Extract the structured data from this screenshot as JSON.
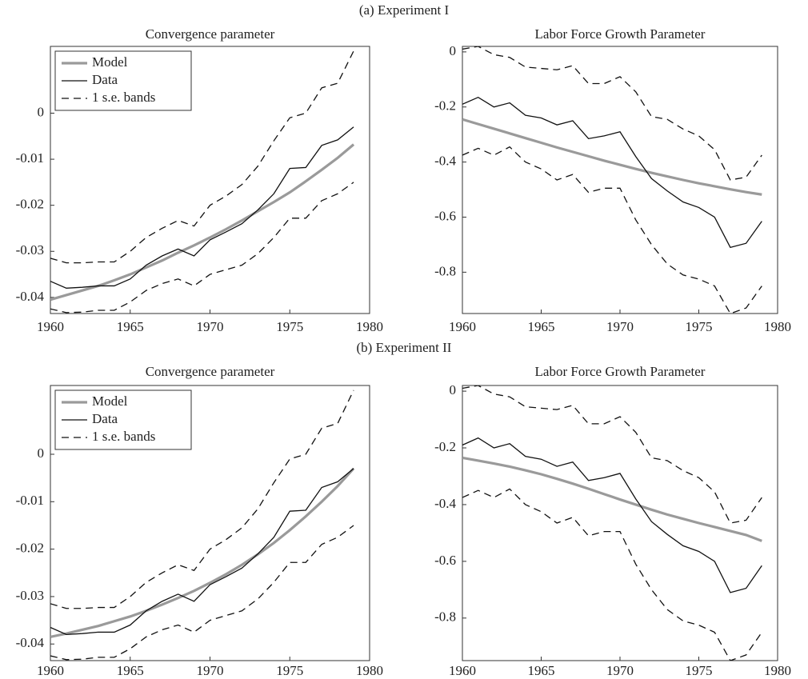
{
  "headings": [
    "(a) Experiment I",
    "(b) Experiment II"
  ],
  "chart_data": [
    {
      "type": "line",
      "title": "Convergence parameter",
      "legend": "upper left",
      "x": [
        1960,
        1961,
        1962,
        1963,
        1964,
        1965,
        1966,
        1967,
        1968,
        1969,
        1970,
        1971,
        1972,
        1973,
        1974,
        1975,
        1976,
        1977,
        1978,
        1979
      ],
      "xlim": [
        1960,
        1980
      ],
      "xticks": [
        1960,
        1965,
        1970,
        1975,
        1980
      ],
      "ylim": [
        -0.0435,
        0.0145
      ],
      "yticks": [
        -0.04,
        -0.03,
        -0.02,
        -0.01,
        0
      ],
      "series": [
        {
          "name": "Model",
          "color": "#9a9a9a",
          "linestyle": "solid",
          "values": [
            -0.0405,
            -0.0395,
            -0.0385,
            -0.0375,
            -0.0363,
            -0.035,
            -0.0335,
            -0.032,
            -0.0303,
            -0.0287,
            -0.027,
            -0.0252,
            -0.0233,
            -0.0213,
            -0.0193,
            -0.0172,
            -0.0148,
            -0.0123,
            -0.0097,
            -0.0068
          ]
        },
        {
          "name": "Data",
          "color": "#111111",
          "linestyle": "solid",
          "values": [
            -0.0365,
            -0.038,
            -0.0378,
            -0.0375,
            -0.0375,
            -0.036,
            -0.033,
            -0.031,
            -0.0295,
            -0.031,
            -0.0275,
            -0.0258,
            -0.024,
            -0.021,
            -0.0175,
            -0.012,
            -0.0118,
            -0.007,
            -0.0058,
            -0.003
          ]
        },
        {
          "name": "1 s.e. bands",
          "color": "#111111",
          "linestyle": "dashed",
          "upper": [
            -0.0315,
            -0.0325,
            -0.0325,
            -0.0323,
            -0.0323,
            -0.03,
            -0.027,
            -0.025,
            -0.0233,
            -0.0245,
            -0.02,
            -0.018,
            -0.0155,
            -0.0115,
            -0.006,
            -0.001,
            0.0,
            0.0055,
            0.0065,
            0.0135
          ],
          "lower": [
            -0.0425,
            -0.0433,
            -0.0432,
            -0.0428,
            -0.0428,
            -0.041,
            -0.0385,
            -0.037,
            -0.036,
            -0.0375,
            -0.035,
            -0.034,
            -0.033,
            -0.0305,
            -0.027,
            -0.0228,
            -0.0228,
            -0.019,
            -0.0175,
            -0.015
          ]
        }
      ]
    },
    {
      "type": "line",
      "title": "Labor Force Growth Parameter",
      "x": [
        1960,
        1961,
        1962,
        1963,
        1964,
        1965,
        1966,
        1967,
        1968,
        1969,
        1970,
        1971,
        1972,
        1973,
        1974,
        1975,
        1976,
        1977,
        1978,
        1979
      ],
      "xlim": [
        1960,
        1980
      ],
      "xticks": [
        1960,
        1965,
        1970,
        1975,
        1980
      ],
      "ylim": [
        -0.95,
        0.02
      ],
      "yticks": [
        -0.8,
        -0.6,
        -0.4,
        -0.2,
        0
      ],
      "series": [
        {
          "color": "#9a9a9a",
          "linestyle": "solid",
          "values": [
            -0.245,
            -0.262,
            -0.279,
            -0.296,
            -0.313,
            -0.33,
            -0.347,
            -0.363,
            -0.379,
            -0.395,
            -0.41,
            -0.425,
            -0.439,
            -0.452,
            -0.465,
            -0.477,
            -0.488,
            -0.499,
            -0.509,
            -0.518
          ]
        },
        {
          "color": "#111111",
          "linestyle": "solid",
          "values": [
            -0.19,
            -0.165,
            -0.2,
            -0.185,
            -0.23,
            -0.24,
            -0.265,
            -0.25,
            -0.315,
            -0.305,
            -0.29,
            -0.38,
            -0.46,
            -0.505,
            -0.545,
            -0.565,
            -0.6,
            -0.71,
            -0.695,
            -0.615
          ]
        },
        {
          "color": "#111111",
          "linestyle": "dashed",
          "upper": [
            0.01,
            0.02,
            -0.01,
            -0.02,
            -0.055,
            -0.06,
            -0.065,
            -0.05,
            -0.115,
            -0.115,
            -0.09,
            -0.145,
            -0.235,
            -0.245,
            -0.28,
            -0.305,
            -0.355,
            -0.465,
            -0.455,
            -0.375
          ],
          "lower": [
            -0.375,
            -0.35,
            -0.375,
            -0.345,
            -0.4,
            -0.425,
            -0.465,
            -0.445,
            -0.51,
            -0.495,
            -0.495,
            -0.61,
            -0.7,
            -0.77,
            -0.81,
            -0.825,
            -0.85,
            -0.95,
            -0.93,
            -0.85
          ]
        }
      ]
    },
    {
      "type": "line",
      "title": "Convergence parameter",
      "legend": "upper left",
      "x": [
        1960,
        1961,
        1962,
        1963,
        1964,
        1965,
        1966,
        1967,
        1968,
        1969,
        1970,
        1971,
        1972,
        1973,
        1974,
        1975,
        1976,
        1977,
        1978,
        1979
      ],
      "xlim": [
        1960,
        1980
      ],
      "xticks": [
        1960,
        1965,
        1970,
        1975,
        1980
      ],
      "ylim": [
        -0.0435,
        0.0145
      ],
      "yticks": [
        -0.04,
        -0.03,
        -0.02,
        -0.01,
        0
      ],
      "series": [
        {
          "name": "Model",
          "color": "#9a9a9a",
          "linestyle": "solid",
          "values": [
            -0.0385,
            -0.0378,
            -0.037,
            -0.0362,
            -0.0352,
            -0.0342,
            -0.033,
            -0.0317,
            -0.0303,
            -0.0288,
            -0.0271,
            -0.0253,
            -0.0233,
            -0.0211,
            -0.0187,
            -0.016,
            -0.0131,
            -0.01,
            -0.0067,
            -0.003
          ]
        },
        {
          "name": "Data",
          "color": "#111111",
          "linestyle": "solid",
          "values": [
            -0.0365,
            -0.038,
            -0.0378,
            -0.0375,
            -0.0375,
            -0.036,
            -0.033,
            -0.031,
            -0.0295,
            -0.031,
            -0.0275,
            -0.0258,
            -0.024,
            -0.021,
            -0.0175,
            -0.012,
            -0.0118,
            -0.007,
            -0.0058,
            -0.003
          ]
        },
        {
          "name": "1 s.e. bands",
          "color": "#111111",
          "linestyle": "dashed",
          "upper": [
            -0.0315,
            -0.0325,
            -0.0325,
            -0.0323,
            -0.0323,
            -0.03,
            -0.027,
            -0.025,
            -0.0233,
            -0.0245,
            -0.02,
            -0.018,
            -0.0155,
            -0.0115,
            -0.006,
            -0.001,
            0.0,
            0.0055,
            0.0065,
            0.0135
          ],
          "lower": [
            -0.0425,
            -0.0433,
            -0.0432,
            -0.0428,
            -0.0428,
            -0.041,
            -0.0385,
            -0.037,
            -0.036,
            -0.0375,
            -0.035,
            -0.034,
            -0.033,
            -0.0305,
            -0.027,
            -0.0228,
            -0.0228,
            -0.019,
            -0.0175,
            -0.015
          ]
        }
      ]
    },
    {
      "type": "line",
      "title": "Labor Force Growth Parameter",
      "x": [
        1960,
        1961,
        1962,
        1963,
        1964,
        1965,
        1966,
        1967,
        1968,
        1969,
        1970,
        1971,
        1972,
        1973,
        1974,
        1975,
        1976,
        1977,
        1978,
        1979
      ],
      "xlim": [
        1960,
        1980
      ],
      "xticks": [
        1960,
        1965,
        1970,
        1975,
        1980
      ],
      "ylim": [
        -0.95,
        0.02
      ],
      "yticks": [
        -0.8,
        -0.6,
        -0.4,
        -0.2,
        0
      ],
      "series": [
        {
          "color": "#9a9a9a",
          "linestyle": "solid",
          "values": [
            -0.235,
            -0.245,
            -0.255,
            -0.266,
            -0.279,
            -0.293,
            -0.309,
            -0.326,
            -0.344,
            -0.363,
            -0.382,
            -0.4,
            -0.418,
            -0.435,
            -0.45,
            -0.465,
            -0.479,
            -0.493,
            -0.507,
            -0.528
          ]
        },
        {
          "color": "#111111",
          "linestyle": "solid",
          "values": [
            -0.19,
            -0.165,
            -0.2,
            -0.185,
            -0.23,
            -0.24,
            -0.265,
            -0.25,
            -0.315,
            -0.305,
            -0.29,
            -0.38,
            -0.46,
            -0.505,
            -0.545,
            -0.565,
            -0.6,
            -0.71,
            -0.695,
            -0.615
          ]
        },
        {
          "color": "#111111",
          "linestyle": "dashed",
          "upper": [
            0.01,
            0.02,
            -0.01,
            -0.02,
            -0.055,
            -0.06,
            -0.065,
            -0.05,
            -0.115,
            -0.115,
            -0.09,
            -0.145,
            -0.235,
            -0.245,
            -0.28,
            -0.305,
            -0.355,
            -0.465,
            -0.455,
            -0.375
          ],
          "lower": [
            -0.375,
            -0.35,
            -0.375,
            -0.345,
            -0.4,
            -0.425,
            -0.465,
            -0.445,
            -0.51,
            -0.495,
            -0.495,
            -0.61,
            -0.7,
            -0.77,
            -0.81,
            -0.825,
            -0.85,
            -0.95,
            -0.93,
            -0.85
          ]
        }
      ]
    }
  ]
}
